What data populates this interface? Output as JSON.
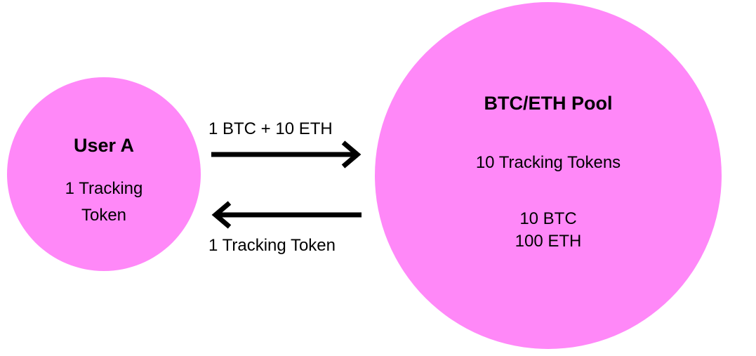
{
  "user": {
    "title": "User A",
    "tokens_line1": "1 Tracking",
    "tokens_line2": "Token"
  },
  "pool": {
    "title": "BTC/ETH Pool",
    "tokens": "10 Tracking Tokens",
    "btc": "10 BTC",
    "eth": "100 ETH"
  },
  "flows": {
    "deposit_label": "1 BTC + 10 ETH",
    "return_label": "1 Tracking Token"
  },
  "colors": {
    "circle_fill": "#ff88f8",
    "arrow": "#000000"
  }
}
